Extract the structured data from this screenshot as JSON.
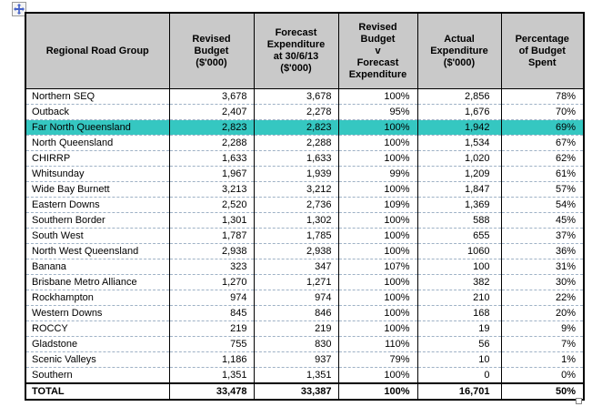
{
  "app": {
    "view": "word-document-table",
    "move_handle_icon": "four-way-move-arrow",
    "resize_handle_icon": "table-resize-square"
  },
  "colors": {
    "header_bg": "#c9c9c9",
    "highlight_row_bg": "#35c7c1",
    "gridline_dashed": "#9fb2c6",
    "table_border": "#000000",
    "text": "#000000",
    "move_arrow": "#4562c8"
  },
  "table": {
    "headers": [
      "Regional Road Group",
      "Revised\nBudget\n($'000)",
      "Forecast\nExpenditure\nat 30/6/13\n($'000)",
      "Revised\nBudget\nv\nForecast\nExpenditure",
      "Actual\nExpenditure\n($'000)",
      "Percentage\nof Budget\nSpent"
    ],
    "rows": [
      {
        "name": "Northern SEQ",
        "revised_budget": "3,678",
        "forecast_expenditure": "3,678",
        "budget_v_forecast": "100%",
        "actual_expenditure": "2,856",
        "pct_spent": "78%",
        "highlighted": false
      },
      {
        "name": "Outback",
        "revised_budget": "2,407",
        "forecast_expenditure": "2,278",
        "budget_v_forecast": "95%",
        "actual_expenditure": "1,676",
        "pct_spent": "70%",
        "highlighted": false
      },
      {
        "name": "Far North Queensland",
        "revised_budget": "2,823",
        "forecast_expenditure": "2,823",
        "budget_v_forecast": "100%",
        "actual_expenditure": "1,942",
        "pct_spent": "69%",
        "highlighted": true
      },
      {
        "name": "North Queensland",
        "revised_budget": "2,288",
        "forecast_expenditure": "2,288",
        "budget_v_forecast": "100%",
        "actual_expenditure": "1,534",
        "pct_spent": "67%",
        "highlighted": false
      },
      {
        "name": "CHIRRP",
        "revised_budget": "1,633",
        "forecast_expenditure": "1,633",
        "budget_v_forecast": "100%",
        "actual_expenditure": "1,020",
        "pct_spent": "62%",
        "highlighted": false
      },
      {
        "name": "Whitsunday",
        "revised_budget": "1,967",
        "forecast_expenditure": "1,939",
        "budget_v_forecast": "99%",
        "actual_expenditure": "1,209",
        "pct_spent": "61%",
        "highlighted": false
      },
      {
        "name": "Wide Bay Burnett",
        "revised_budget": "3,213",
        "forecast_expenditure": "3,212",
        "budget_v_forecast": "100%",
        "actual_expenditure": "1,847",
        "pct_spent": "57%",
        "highlighted": false
      },
      {
        "name": "Eastern Downs",
        "revised_budget": "2,520",
        "forecast_expenditure": "2,736",
        "budget_v_forecast": "109%",
        "actual_expenditure": "1,369",
        "pct_spent": "54%",
        "highlighted": false
      },
      {
        "name": "Southern Border",
        "revised_budget": "1,301",
        "forecast_expenditure": "1,302",
        "budget_v_forecast": "100%",
        "actual_expenditure": "588",
        "pct_spent": "45%",
        "highlighted": false
      },
      {
        "name": "South West",
        "revised_budget": "1,787",
        "forecast_expenditure": "1,785",
        "budget_v_forecast": "100%",
        "actual_expenditure": "655",
        "pct_spent": "37%",
        "highlighted": false
      },
      {
        "name": "North West Queensland",
        "revised_budget": "2,938",
        "forecast_expenditure": "2,938",
        "budget_v_forecast": "100%",
        "actual_expenditure": "1060",
        "pct_spent": "36%",
        "highlighted": false
      },
      {
        "name": "Banana",
        "revised_budget": "323",
        "forecast_expenditure": "347",
        "budget_v_forecast": "107%",
        "actual_expenditure": "100",
        "pct_spent": "31%",
        "highlighted": false
      },
      {
        "name": "Brisbane Metro Alliance",
        "revised_budget": "1,270",
        "forecast_expenditure": "1,271",
        "budget_v_forecast": "100%",
        "actual_expenditure": "382",
        "pct_spent": "30%",
        "highlighted": false
      },
      {
        "name": "Rockhampton",
        "revised_budget": "974",
        "forecast_expenditure": "974",
        "budget_v_forecast": "100%",
        "actual_expenditure": "210",
        "pct_spent": "22%",
        "highlighted": false
      },
      {
        "name": "Western Downs",
        "revised_budget": "845",
        "forecast_expenditure": "846",
        "budget_v_forecast": "100%",
        "actual_expenditure": "168",
        "pct_spent": "20%",
        "highlighted": false
      },
      {
        "name": "ROCCY",
        "revised_budget": "219",
        "forecast_expenditure": "219",
        "budget_v_forecast": "100%",
        "actual_expenditure": "19",
        "pct_spent": "9%",
        "highlighted": false
      },
      {
        "name": "Gladstone",
        "revised_budget": "755",
        "forecast_expenditure": "830",
        "budget_v_forecast": "110%",
        "actual_expenditure": "56",
        "pct_spent": "7%",
        "highlighted": false
      },
      {
        "name": "Scenic Valleys",
        "revised_budget": "1,186",
        "forecast_expenditure": "937",
        "budget_v_forecast": "79%",
        "actual_expenditure": "10",
        "pct_spent": "1%",
        "highlighted": false
      },
      {
        "name": "Southern",
        "revised_budget": "1,351",
        "forecast_expenditure": "1,351",
        "budget_v_forecast": "100%",
        "actual_expenditure": "0",
        "pct_spent": "0%",
        "highlighted": false
      }
    ],
    "total_row": {
      "name": "TOTAL",
      "revised_budget": "33,478",
      "forecast_expenditure": "33,387",
      "budget_v_forecast": "100%",
      "actual_expenditure": "16,701",
      "pct_spent": "50%"
    }
  }
}
